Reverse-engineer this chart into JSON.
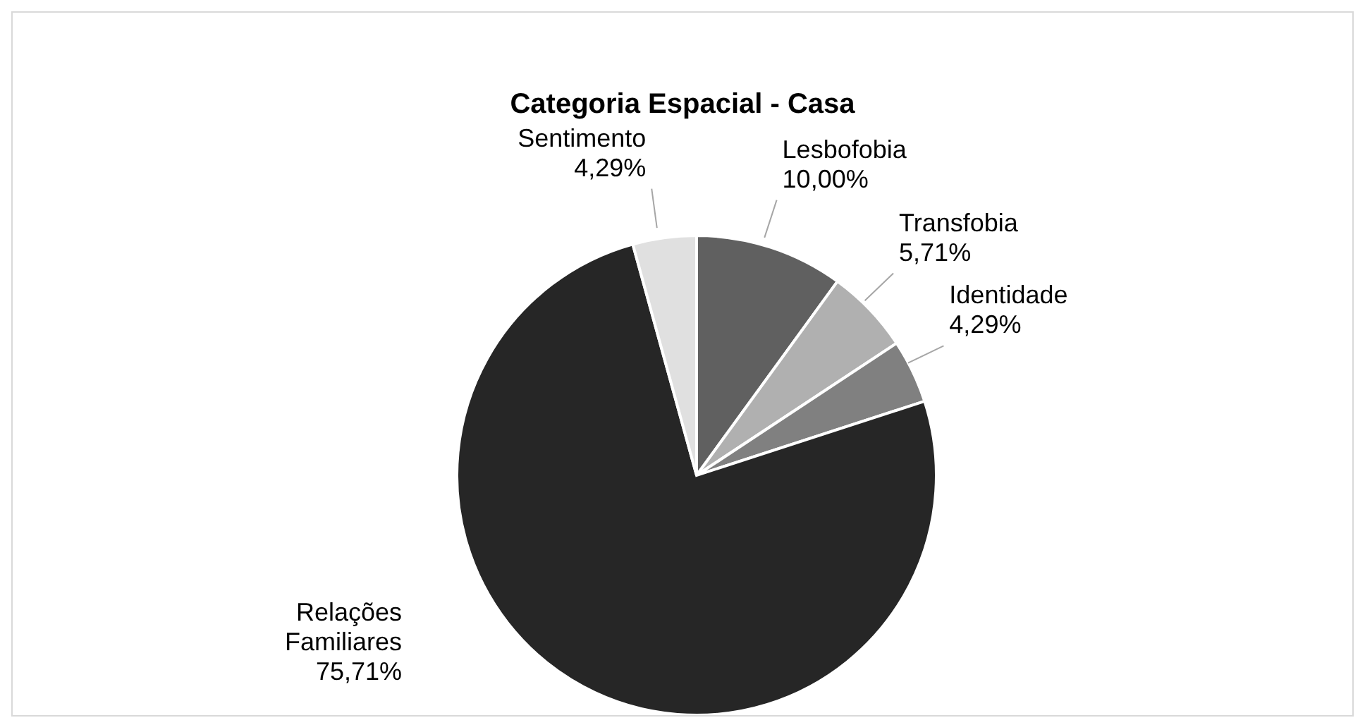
{
  "chart_data": {
    "type": "pie",
    "title": "Categoria Espacial - Casa",
    "categories": [
      "Lesbofobia",
      "Transfobia",
      "Identidade",
      "Relações Familiares",
      "Sentimento"
    ],
    "values": [
      10.0,
      5.71,
      4.29,
      75.71,
      4.29
    ],
    "value_labels": [
      "10,00%",
      "5,71%",
      "4,29%",
      "75,71%",
      "4,29%"
    ],
    "colors": [
      "#606060",
      "#b0b0b0",
      "#808080",
      "#262626",
      "#e0e0e0"
    ],
    "legend": false
  }
}
